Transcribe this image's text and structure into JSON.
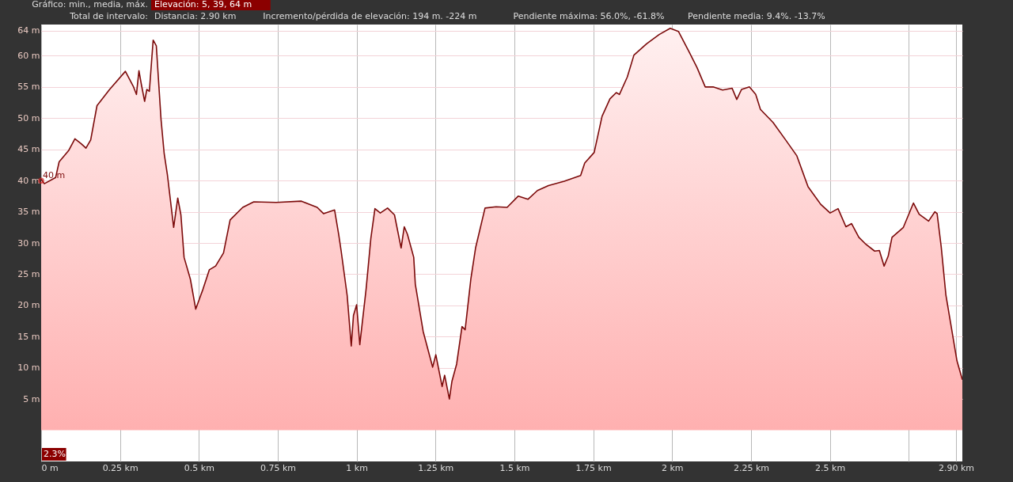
{
  "chart_data": {
    "type": "area",
    "x": [
      0,
      0.01,
      0.046,
      0.057,
      0.087,
      0.107,
      0.127,
      0.142,
      0.157,
      0.177,
      0.217,
      0.267,
      0.292,
      0.302,
      0.31,
      0.318,
      0.328,
      0.335,
      0.343,
      0.355,
      0.365,
      0.38,
      0.39,
      0.4,
      0.42,
      0.433,
      0.443,
      0.453,
      0.473,
      0.49,
      0.513,
      0.533,
      0.553,
      0.578,
      0.599,
      0.639,
      0.674,
      0.745,
      0.825,
      0.875,
      0.895,
      0.93,
      0.943,
      0.951,
      0.97,
      0.983,
      0.99,
      1.0,
      1.01,
      1.03,
      1.045,
      1.058,
      1.075,
      1.098,
      1.12,
      1.141,
      1.151,
      1.161,
      1.181,
      1.186,
      1.211,
      1.241,
      1.251,
      1.271,
      1.279,
      1.294,
      1.302,
      1.317,
      1.334,
      1.344,
      1.362,
      1.377,
      1.407,
      1.442,
      1.477,
      1.512,
      1.543,
      1.573,
      1.608,
      1.658,
      1.71,
      1.723,
      1.753,
      1.778,
      1.803,
      1.823,
      1.833,
      1.858,
      1.879,
      1.919,
      1.959,
      1.994,
      2.02,
      2.054,
      2.079,
      2.105,
      2.13,
      2.16,
      2.19,
      2.205,
      2.22,
      2.245,
      2.265,
      2.28,
      2.32,
      2.36,
      2.395,
      2.431,
      2.471,
      2.501,
      2.526,
      2.551,
      2.569,
      2.592,
      2.612,
      2.642,
      2.657,
      2.672,
      2.685,
      2.697,
      2.733,
      2.765,
      2.783,
      2.813,
      2.833,
      2.84,
      2.853,
      2.868,
      2.883,
      2.903,
      2.92
    ],
    "series": [
      {
        "color": "#7b0a0a",
        "values": [
          40.2,
          39.5,
          40.5,
          43,
          44.8,
          46.7,
          45.9,
          45.2,
          46.5,
          52,
          54.6,
          57.5,
          55.1,
          53.8,
          57.6,
          55.3,
          52.7,
          54.6,
          54.3,
          62.5,
          61.6,
          49.8,
          44.3,
          41,
          32.5,
          37.2,
          34.5,
          27.7,
          24.2,
          19.4,
          22.6,
          25.7,
          26.3,
          28.4,
          33.7,
          35.7,
          36.6,
          36.5,
          36.7,
          35.7,
          34.7,
          35.3,
          31.4,
          28.7,
          21.6,
          13.5,
          18.4,
          20.1,
          13.7,
          22.6,
          30.7,
          35.5,
          34.8,
          35.6,
          34.5,
          29.2,
          32.6,
          31.4,
          27.7,
          23.4,
          15.8,
          10.1,
          12.1,
          7,
          8.8,
          5,
          7.8,
          10.6,
          16.6,
          16.1,
          24.2,
          29.2,
          35.6,
          35.8,
          35.7,
          37.5,
          37,
          38.4,
          39.2,
          39.9,
          40.8,
          42.8,
          44.5,
          50.3,
          53.1,
          54.1,
          53.8,
          56.6,
          60.1,
          61.9,
          63.4,
          64.4,
          63.9,
          60.6,
          58.1,
          55,
          55,
          54.5,
          54.8,
          53,
          54.6,
          55,
          53.8,
          51.4,
          49.3,
          46.5,
          44,
          39,
          36.2,
          34.8,
          35.5,
          32.6,
          33.1,
          30.9,
          29.9,
          28.7,
          28.8,
          26.3,
          27.9,
          30.9,
          32.5,
          36.4,
          34.6,
          33.5,
          35,
          34.7,
          29.4,
          21.6,
          17.1,
          11.1,
          8.1
        ]
      }
    ],
    "xlim": [
      0,
      2.92
    ],
    "xticks": [
      {
        "value": 0,
        "label": "0 m"
      },
      {
        "value": 0.25,
        "label": "0.25 km"
      },
      {
        "value": 0.5,
        "label": "0.5 km"
      },
      {
        "value": 0.75,
        "label": "0.75 km"
      },
      {
        "value": 1,
        "label": "1 km"
      },
      {
        "value": 1.25,
        "label": "1.25 km"
      },
      {
        "value": 1.5,
        "label": "1.5 km"
      },
      {
        "value": 1.75,
        "label": "1.75 km"
      },
      {
        "value": 2,
        "label": "2 km"
      },
      {
        "value": 2.25,
        "label": "2.25 km"
      },
      {
        "value": 2.5,
        "label": "2.5 km"
      },
      {
        "value": 2.75,
        "label": null
      },
      {
        "value": 2.9,
        "label": "2.90 km"
      }
    ],
    "ylim": [
      -5,
      65
    ],
    "yticks": [
      {
        "value": 5,
        "label": "5 m"
      },
      {
        "value": 10,
        "label": "10 m"
      },
      {
        "value": 15,
        "label": "15 m"
      },
      {
        "value": 20,
        "label": "20 m"
      },
      {
        "value": 25,
        "label": "25 m"
      },
      {
        "value": 30,
        "label": "30 m"
      },
      {
        "value": 35,
        "label": "35 m"
      },
      {
        "value": 40,
        "label": "40 m"
      },
      {
        "value": 45,
        "label": "45 m"
      },
      {
        "value": 50,
        "label": "50 m"
      },
      {
        "value": 55,
        "label": "55 m"
      },
      {
        "value": 60,
        "label": "60 m"
      },
      {
        "value": 64,
        "label": "64 m"
      }
    ],
    "grid": true,
    "annotations": [
      "Gráfico: min., media, máx.",
      "Elevación: 5, 39, 64 m",
      "Total de intervalo:",
      "Distancia: 2.90 km",
      "Incremento/pérdida de elevación: 194 m. -224 m",
      "Pendiente máxima: 56.0%, -61.8%",
      "Pendiente media: 9.4%. -13.7%",
      {
        "text": "40 m",
        "x": 0,
        "y": 40
      },
      "2.3%"
    ]
  }
}
